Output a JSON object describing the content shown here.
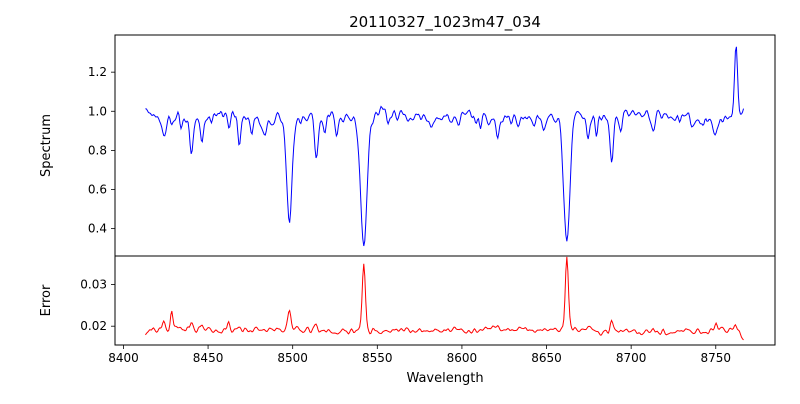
{
  "figure": {
    "title": "20110327_1023m47_034",
    "xlabel": "Wavelength"
  },
  "colors": {
    "spectrum": "#0000ff",
    "error": "#ff0000",
    "axis": "#000000",
    "background": "#ffffff"
  },
  "chart_data": [
    {
      "type": "line",
      "panel": "spectrum",
      "title": "20110327_1023m47_034",
      "ylabel": "Spectrum",
      "color": "#0000ff",
      "xlim": [
        8395,
        8785
      ],
      "ylim": [
        0.26,
        1.39
      ],
      "x_range_data": [
        8413,
        8767
      ],
      "xticks": [
        {
          "v": 8400,
          "label": "8400"
        },
        {
          "v": 8450,
          "label": "8450"
        },
        {
          "v": 8500,
          "label": "8500"
        },
        {
          "v": 8550,
          "label": "8550"
        },
        {
          "v": 8600,
          "label": "8600"
        },
        {
          "v": 8650,
          "label": "8650"
        },
        {
          "v": 8700,
          "label": "8700"
        },
        {
          "v": 8750,
          "label": "8750"
        }
      ],
      "yticks": [
        {
          "v": 0.4,
          "label": "0.4"
        },
        {
          "v": 0.6,
          "label": "0.6"
        },
        {
          "v": 0.8,
          "label": "0.8"
        },
        {
          "v": 1.0,
          "label": "1.0"
        },
        {
          "v": 1.2,
          "label": "1.2"
        }
      ],
      "continuum": 0.97,
      "noise_sigma": 0.016,
      "absorption_lines": [
        {
          "center": 8424,
          "depth": 0.1,
          "sigma": 0.9
        },
        {
          "center": 8428.5,
          "depth": 0.08,
          "sigma": 0.8
        },
        {
          "center": 8434,
          "depth": 0.05,
          "sigma": 0.8
        },
        {
          "center": 8440,
          "depth": 0.21,
          "sigma": 1.0
        },
        {
          "center": 8446.5,
          "depth": 0.13,
          "sigma": 0.9
        },
        {
          "center": 8452,
          "depth": 0.06,
          "sigma": 0.8
        },
        {
          "center": 8462,
          "depth": 0.07,
          "sigma": 0.8
        },
        {
          "center": 8468.5,
          "depth": 0.13,
          "sigma": 0.9
        },
        {
          "center": 8476,
          "depth": 0.06,
          "sigma": 0.8
        },
        {
          "center": 8484,
          "depth": 0.05,
          "sigma": 0.8
        },
        {
          "center": 8498,
          "depth": 0.52,
          "sigma": 1.6
        },
        {
          "center": 8514,
          "depth": 0.18,
          "sigma": 1.0
        },
        {
          "center": 8519,
          "depth": 0.11,
          "sigma": 0.9
        },
        {
          "center": 8526,
          "depth": 0.06,
          "sigma": 0.8
        },
        {
          "center": 8542,
          "depth": 0.67,
          "sigma": 1.9
        },
        {
          "center": 8556,
          "depth": 0.05,
          "sigma": 0.8
        },
        {
          "center": 8582,
          "depth": 0.08,
          "sigma": 0.9
        },
        {
          "center": 8598.5,
          "depth": 0.06,
          "sigma": 0.8
        },
        {
          "center": 8611,
          "depth": 0.07,
          "sigma": 0.8
        },
        {
          "center": 8621,
          "depth": 0.1,
          "sigma": 0.9
        },
        {
          "center": 8648,
          "depth": 0.06,
          "sigma": 0.8
        },
        {
          "center": 8662,
          "depth": 0.66,
          "sigma": 1.8
        },
        {
          "center": 8674.5,
          "depth": 0.15,
          "sigma": 0.9
        },
        {
          "center": 8679.5,
          "depth": 0.09,
          "sigma": 0.8
        },
        {
          "center": 8688.5,
          "depth": 0.24,
          "sigma": 1.0
        },
        {
          "center": 8694,
          "depth": 0.07,
          "sigma": 0.8
        },
        {
          "center": 8713,
          "depth": 0.08,
          "sigma": 0.9
        },
        {
          "center": 8736,
          "depth": 0.06,
          "sigma": 0.8
        },
        {
          "center": 8750,
          "depth": 0.1,
          "sigma": 0.9
        }
      ],
      "emission_lines": [
        {
          "center": 8762,
          "amplitude": 0.36,
          "sigma": 0.9
        }
      ]
    },
    {
      "type": "line",
      "panel": "error",
      "ylabel": "Error",
      "xlabel": "Wavelength",
      "color": "#ff0000",
      "xlim": [
        8395,
        8785
      ],
      "ylim": [
        0.0155,
        0.0368
      ],
      "yticks": [
        {
          "v": 0.02,
          "label": "0.02"
        },
        {
          "v": 0.03,
          "label": "0.03"
        }
      ],
      "baseline": 0.019,
      "noise_sigma": 0.0004,
      "peaks": [
        {
          "center": 8424,
          "amplitude": 0.0015,
          "sigma": 0.8
        },
        {
          "center": 8428.5,
          "amplitude": 0.0045,
          "sigma": 0.7
        },
        {
          "center": 8440,
          "amplitude": 0.0018,
          "sigma": 0.8
        },
        {
          "center": 8446.5,
          "amplitude": 0.001,
          "sigma": 0.7
        },
        {
          "center": 8462,
          "amplitude": 0.002,
          "sigma": 0.7
        },
        {
          "center": 8468.5,
          "amplitude": 0.001,
          "sigma": 0.7
        },
        {
          "center": 8498,
          "amplitude": 0.005,
          "sigma": 1.0
        },
        {
          "center": 8514,
          "amplitude": 0.0012,
          "sigma": 0.8
        },
        {
          "center": 8542,
          "amplitude": 0.0163,
          "sigma": 0.9
        },
        {
          "center": 8582,
          "amplitude": 0.0008,
          "sigma": 0.7
        },
        {
          "center": 8621,
          "amplitude": 0.001,
          "sigma": 0.7
        },
        {
          "center": 8662,
          "amplitude": 0.0168,
          "sigma": 0.9
        },
        {
          "center": 8674.5,
          "amplitude": 0.0012,
          "sigma": 0.7
        },
        {
          "center": 8688.5,
          "amplitude": 0.0022,
          "sigma": 0.8
        },
        {
          "center": 8713,
          "amplitude": 0.001,
          "sigma": 0.7
        },
        {
          "center": 8750,
          "amplitude": 0.0015,
          "sigma": 0.7
        },
        {
          "center": 8762,
          "amplitude": 0.0015,
          "sigma": 0.8
        }
      ],
      "end_trend": {
        "center": 8767,
        "amplitude": -0.0022,
        "sigma": 1.8
      }
    }
  ]
}
